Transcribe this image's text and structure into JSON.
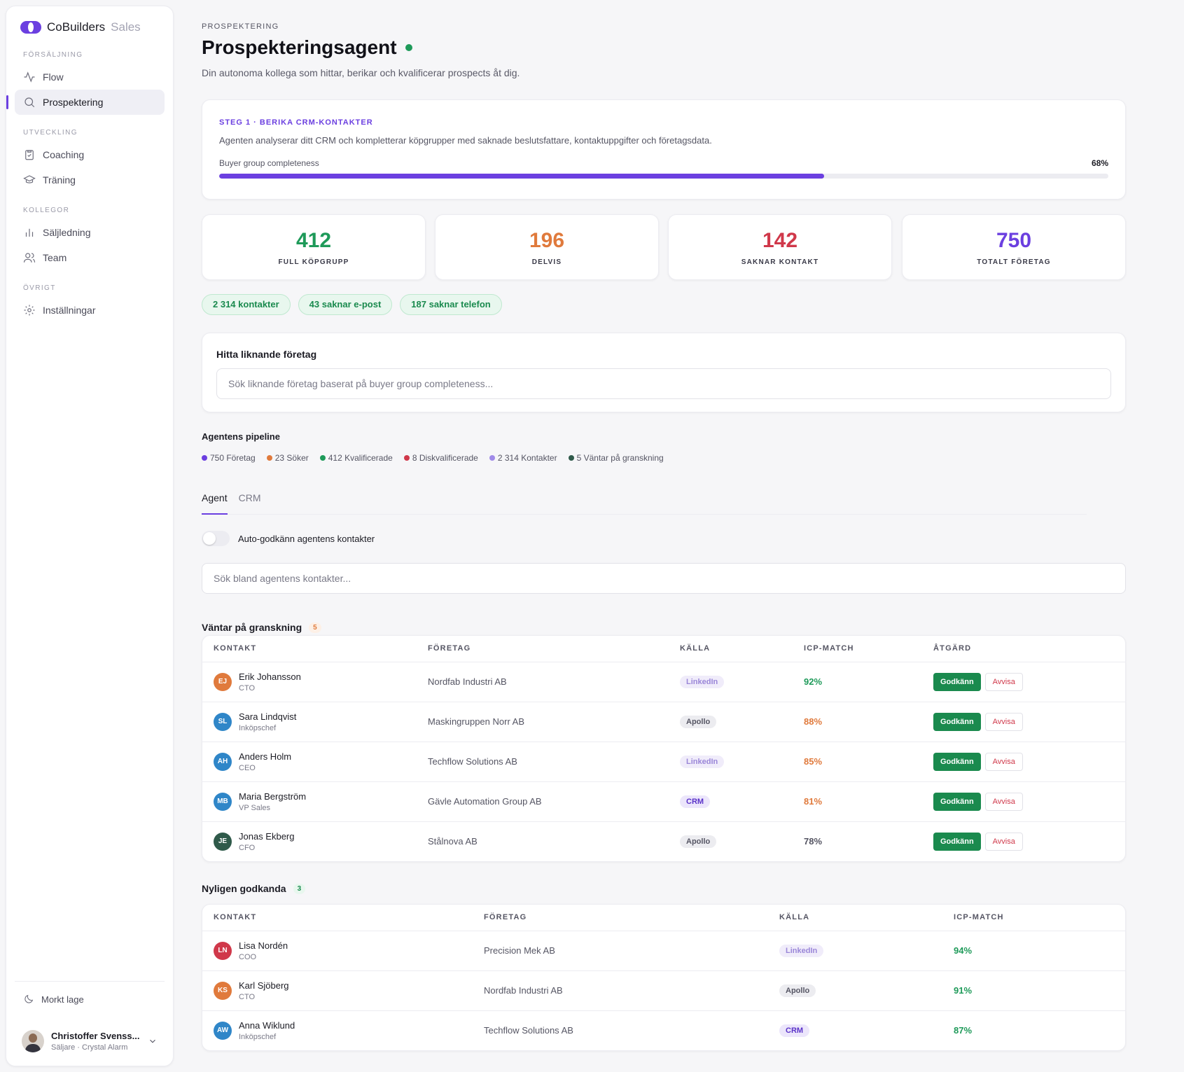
{
  "brand": {
    "name": "CoBuilders",
    "suffix": "Sales"
  },
  "sidebar": {
    "sections": [
      {
        "heading": "FÖRSÄLJNING",
        "items": [
          {
            "label": "Flow",
            "icon": "activity-icon"
          },
          {
            "label": "Prospektering",
            "icon": "search-icon",
            "active": true
          }
        ]
      },
      {
        "heading": "UTVECKLING",
        "items": [
          {
            "label": "Coaching",
            "icon": "clipboard-icon"
          },
          {
            "label": "Träning",
            "icon": "graduation-cap-icon"
          }
        ]
      },
      {
        "heading": "KOLLEGOR",
        "items": [
          {
            "label": "Säljledning",
            "icon": "bar-chart-icon"
          },
          {
            "label": "Team",
            "icon": "users-icon"
          }
        ]
      },
      {
        "heading": "ÖVRIGT",
        "items": [
          {
            "label": "Inställningar",
            "icon": "gear-icon"
          }
        ]
      }
    ],
    "dark_mode": "Morkt lage",
    "user": {
      "name": "Christoffer Svenss...",
      "role": "Säljare · Crystal Alarm"
    }
  },
  "header": {
    "eyebrow": "PROSPEKTERING",
    "title": "Prospekteringsagent",
    "subtitle": "Din autonoma kollega som hittar, berikar och kvalificerar prospects åt dig."
  },
  "step": {
    "label": "STEG 1 · BERIKA CRM-KONTAKTER",
    "description": "Agenten analyserar ditt CRM och kompletterar köpgrupper med saknade beslutsfattare, kontaktuppgifter och företagsdata.",
    "progress_label": "Buyer group completeness",
    "progress_value": 68,
    "progress_text": "68%"
  },
  "stats": [
    {
      "value": "412",
      "label": "FULL KÖPGRUPP",
      "color": "#1e9a59"
    },
    {
      "value": "196",
      "label": "DELVIS",
      "color": "#e07a3c"
    },
    {
      "value": "142",
      "label": "SAKNAR KONTAKT",
      "color": "#d0384a"
    },
    {
      "value": "750",
      "label": "TOTALT FÖRETAG",
      "color": "#6b3fe0"
    }
  ],
  "pills": [
    "2 314 kontakter",
    "43 saknar e-post",
    "187 saknar telefon"
  ],
  "similar": {
    "title": "Hitta liknande företag",
    "placeholder": "Sök liknande företag baserat på buyer group completeness..."
  },
  "pipeline": {
    "title": "Agentens pipeline",
    "legend": [
      {
        "label": "750 Företag",
        "color": "#6b3fe0"
      },
      {
        "label": "23 Söker",
        "color": "#e07a3c"
      },
      {
        "label": "412 Kvalificerade",
        "color": "#1e9a59"
      },
      {
        "label": "8 Diskvalificerade",
        "color": "#d0384a"
      },
      {
        "label": "2 314 Kontakter",
        "color": "#a08ae8"
      },
      {
        "label": "5 Väntar på granskning",
        "color": "#2f5a4a"
      }
    ]
  },
  "tabs": [
    "Agent",
    "CRM"
  ],
  "toggle_label": "Auto-godkänn agentens kontakter",
  "agent_search_placeholder": "Sök bland agentens kontakter...",
  "pending": {
    "title": "Väntar på granskning",
    "count": "5",
    "columns": [
      "KONTAKT",
      "FÖRETAG",
      "KÄLLA",
      "ICP-MATCH",
      "ÅTGÄRD"
    ],
    "approve_label": "Godkänn",
    "reject_label": "Avvisa",
    "rows": [
      {
        "initials": "EJ",
        "avatar_color": "#e07a3c",
        "name": "Erik Johansson",
        "role": "CTO",
        "company": "Nordfab Industri AB",
        "source": "LinkedIn",
        "source_kind": "linkedin",
        "icp": "92%",
        "icp_color": "#1e9a59"
      },
      {
        "initials": "SL",
        "avatar_color": "#2f86c8",
        "name": "Sara Lindqvist",
        "role": "Inköpschef",
        "company": "Maskingruppen Norr AB",
        "source": "Apollo",
        "source_kind": "apollo",
        "icp": "88%",
        "icp_color": "#e07a3c"
      },
      {
        "initials": "AH",
        "avatar_color": "#2f86c8",
        "name": "Anders Holm",
        "role": "CEO",
        "company": "Techflow Solutions AB",
        "source": "LinkedIn",
        "source_kind": "linkedin",
        "icp": "85%",
        "icp_color": "#e07a3c"
      },
      {
        "initials": "MB",
        "avatar_color": "#2f86c8",
        "name": "Maria Bergström",
        "role": "VP Sales",
        "company": "Gävle Automation Group AB",
        "source": "CRM",
        "source_kind": "crm",
        "icp": "81%",
        "icp_color": "#e07a3c"
      },
      {
        "initials": "JE",
        "avatar_color": "#2f5a4a",
        "name": "Jonas Ekberg",
        "role": "CFO",
        "company": "Stålnova AB",
        "source": "Apollo",
        "source_kind": "apollo",
        "icp": "78%",
        "icp_color": "#555563"
      }
    ]
  },
  "approved": {
    "title": "Nyligen godkanda",
    "count": "3",
    "columns": [
      "KONTAKT",
      "FÖRETAG",
      "KÄLLA",
      "ICP-MATCH"
    ],
    "rows": [
      {
        "initials": "LN",
        "avatar_color": "#d0384a",
        "name": "Lisa Nordén",
        "role": "COO",
        "company": "Precision Mek AB",
        "source": "LinkedIn",
        "source_kind": "linkedin",
        "icp": "94%",
        "icp_color": "#1e9a59"
      },
      {
        "initials": "KS",
        "avatar_color": "#e07a3c",
        "name": "Karl Sjöberg",
        "role": "CTO",
        "company": "Nordfab Industri AB",
        "source": "Apollo",
        "source_kind": "apollo",
        "icp": "91%",
        "icp_color": "#1e9a59"
      },
      {
        "initials": "AW",
        "avatar_color": "#2f86c8",
        "name": "Anna Wiklund",
        "role": "Inköpschef",
        "company": "Techflow Solutions AB",
        "source": "CRM",
        "source_kind": "crm",
        "icp": "87%",
        "icp_color": "#1e9a59"
      }
    ]
  }
}
